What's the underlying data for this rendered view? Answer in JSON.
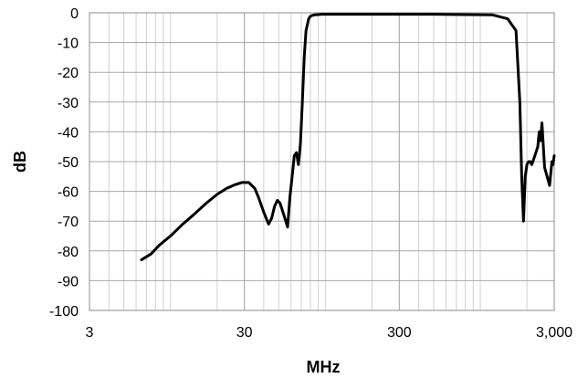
{
  "chart_data": {
    "type": "line",
    "xlabel": "MHz",
    "ylabel": "dB",
    "x_scale": "log",
    "xlim": [
      3,
      3000
    ],
    "ylim": [
      -100,
      0
    ],
    "x_ticks": [
      3,
      30,
      300,
      3000
    ],
    "x_tick_labels": [
      "3",
      "30",
      "300",
      "3,000"
    ],
    "y_ticks": [
      0,
      -10,
      -20,
      -30,
      -40,
      -50,
      -60,
      -70,
      -80,
      -90,
      -100
    ],
    "y_tick_labels": [
      "0",
      "-10",
      "-20",
      "-30",
      "-40",
      "-50",
      "-60",
      "-70",
      "-80",
      "-90",
      "-100"
    ],
    "grid": {
      "x_major": true,
      "x_minor": true,
      "y_major": true
    },
    "line_color": "#000000",
    "grid_color": "#d0d0d0",
    "series": [
      {
        "x": [
          6.5,
          7.5,
          8.5,
          10,
          12,
          14,
          17,
          20,
          23,
          26,
          29,
          32,
          35,
          37,
          40,
          43,
          45,
          47,
          49,
          51,
          54,
          57,
          59,
          61,
          63,
          65,
          67,
          69,
          71,
          73,
          75,
          78,
          80,
          82,
          85,
          90,
          95,
          100,
          120,
          150,
          200,
          300,
          500,
          800,
          1200,
          1500,
          1700,
          1800,
          1850,
          1900,
          1950,
          2000,
          2050,
          2100,
          2150,
          2250,
          2350,
          2400,
          2450,
          2500,
          2600,
          2700,
          2800,
          2900,
          2950,
          3000
        ],
        "y": [
          -83,
          -81,
          -78,
          -75,
          -71,
          -68,
          -64,
          -61,
          -59,
          -57.8,
          -57,
          -57,
          -59,
          -62,
          -67,
          -71,
          -69,
          -65,
          -63,
          -64,
          -68,
          -72,
          -62,
          -55,
          -48,
          -47,
          -51,
          -44,
          -30,
          -15,
          -6,
          -2,
          -1.2,
          -0.9,
          -0.7,
          -0.6,
          -0.5,
          -0.5,
          -0.5,
          -0.5,
          -0.5,
          -0.5,
          -0.5,
          -0.6,
          -0.7,
          -2,
          -6,
          -30,
          -55,
          -70,
          -55,
          -51,
          -50,
          -50,
          -51,
          -48,
          -45,
          -40,
          -43,
          -37,
          -52,
          -55,
          -58,
          -50,
          -51,
          -48
        ]
      }
    ]
  }
}
